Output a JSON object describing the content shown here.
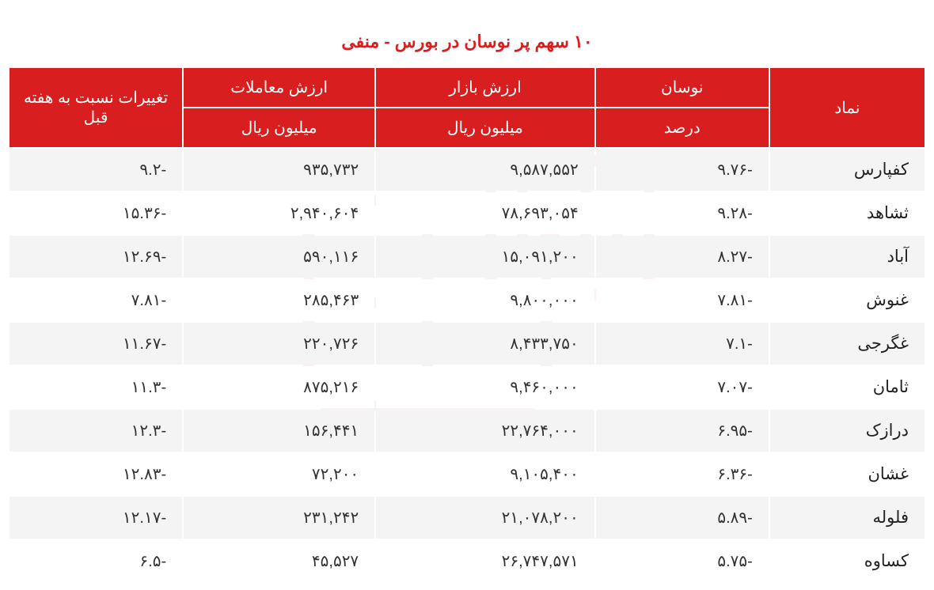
{
  "title": "۱۰ سهم پر نوسان در بورس - منفی",
  "title_color": "#d81e1e",
  "colors": {
    "header_bg": "#d81e1e",
    "header_text": "#ffffff",
    "row_even_bg": "#f4f4f4",
    "row_odd_bg": "#ffffff",
    "text": "#333333",
    "watermark": "#f8d0d0"
  },
  "columns": {
    "change_prev_week": "تغییرات نسبت به هفته قبل",
    "trade_value": "ارزش معاملات",
    "market_value": "ارزش بازار",
    "fluctuation": "نوسان",
    "symbol": "نماد",
    "million_rial": "میلیون ریال",
    "percent": "درصد"
  },
  "column_widths": {
    "change": "19%",
    "trade": "21%",
    "market": "24%",
    "fluct": "19%",
    "symbol": "17%"
  },
  "rows": [
    {
      "symbol": "کفپارس",
      "fluct": "-۹.۷۶",
      "market": "۹,۵۸۷,۵۵۲",
      "trade": "۹۳۵,۷۳۲",
      "change": "-۹.۲"
    },
    {
      "symbol": "ثشاهد",
      "fluct": "-۹.۲۸",
      "market": "۷۸,۶۹۳,۰۵۴",
      "trade": "۲,۹۴۰,۶۰۴",
      "change": "-۱۵.۳۶"
    },
    {
      "symbol": "آباد",
      "fluct": "-۸.۲۷",
      "market": "۱۵,۰۹۱,۲۰۰",
      "trade": "۵۹۰,۱۱۶",
      "change": "-۱۲.۶۹"
    },
    {
      "symbol": "غنوش",
      "fluct": "-۷.۸۱",
      "market": "۹,۸۰۰,۰۰۰",
      "trade": "۲۸۵,۴۶۳",
      "change": "-۷.۸۱"
    },
    {
      "symbol": "غگرجی",
      "fluct": "-۷.۱",
      "market": "۸,۴۳۳,۷۵۰",
      "trade": "۲۲۰,۷۲۶",
      "change": "-۱۱.۶۷"
    },
    {
      "symbol": "ثامان",
      "fluct": "-۷.۰۷",
      "market": "۹,۴۶۰,۰۰۰",
      "trade": "۸۷۵,۲۱۶",
      "change": "-۱۱.۳"
    },
    {
      "symbol": "درازک",
      "fluct": "-۶.۹۵",
      "market": "۲۲,۷۶۴,۰۰۰",
      "trade": "۱۵۶,۴۴۱",
      "change": "-۱۲.۳"
    },
    {
      "symbol": "غشان",
      "fluct": "-۶.۳۶",
      "market": "۹,۱۰۵,۴۰۰",
      "trade": "۷۲,۲۰۰",
      "change": "-۱۲.۸۳"
    },
    {
      "symbol": "فلوله",
      "fluct": "-۵.۸۹",
      "market": "۲۱,۰۷۸,۲۰۰",
      "trade": "۲۳۱,۲۴۲",
      "change": "-۱۲.۱۷"
    },
    {
      "symbol": "کساوه",
      "fluct": "-۵.۷۵",
      "market": "۲۶,۷۴۷,۵۷۱",
      "trade": "۴۵,۵۲۷",
      "change": "-۶.۵"
    }
  ],
  "fonts": {
    "title_size": 22,
    "header_size": 20,
    "cell_size": 20
  }
}
